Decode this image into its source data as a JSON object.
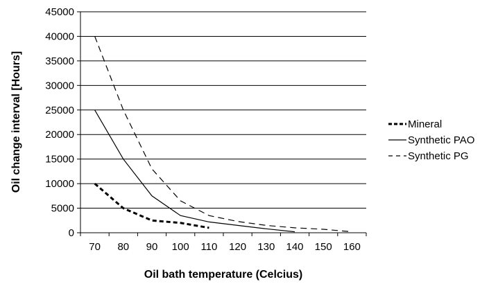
{
  "chart_data": {
    "type": "line",
    "title": "",
    "xlabel": "Oil bath temperature (Celcius)",
    "ylabel": "Oil change interval [Hours]",
    "x_ticks": [
      "70",
      "80",
      "90",
      "100",
      "110",
      "120",
      "130",
      "140",
      "150",
      "160"
    ],
    "y_ticks": [
      "0",
      "5000",
      "10000",
      "15000",
      "20000",
      "25000",
      "30000",
      "35000",
      "40000",
      "45000"
    ],
    "xlim": [
      65,
      165
    ],
    "ylim": [
      0,
      45000
    ],
    "grid": "horizontal",
    "legend_position": "right",
    "series": [
      {
        "name": "Mineral",
        "style": "dotted-bold",
        "color": "#000000",
        "points": [
          [
            70,
            10000
          ],
          [
            80,
            5000
          ],
          [
            90,
            2500
          ],
          [
            100,
            2000
          ],
          [
            110,
            1000
          ]
        ]
      },
      {
        "name": "Synthetic PAO",
        "style": "solid",
        "color": "#000000",
        "points": [
          [
            70,
            25000
          ],
          [
            80,
            15000
          ],
          [
            90,
            7500
          ],
          [
            100,
            3500
          ],
          [
            110,
            2200
          ],
          [
            120,
            1500
          ],
          [
            130,
            800
          ],
          [
            140,
            200
          ]
        ]
      },
      {
        "name": "Synthetic PG",
        "style": "dashed",
        "color": "#000000",
        "points": [
          [
            70,
            40000
          ],
          [
            80,
            25000
          ],
          [
            90,
            13000
          ],
          [
            100,
            6500
          ],
          [
            110,
            3500
          ],
          [
            120,
            2300
          ],
          [
            130,
            1500
          ],
          [
            140,
            1000
          ],
          [
            150,
            700
          ],
          [
            160,
            200
          ]
        ]
      }
    ]
  }
}
